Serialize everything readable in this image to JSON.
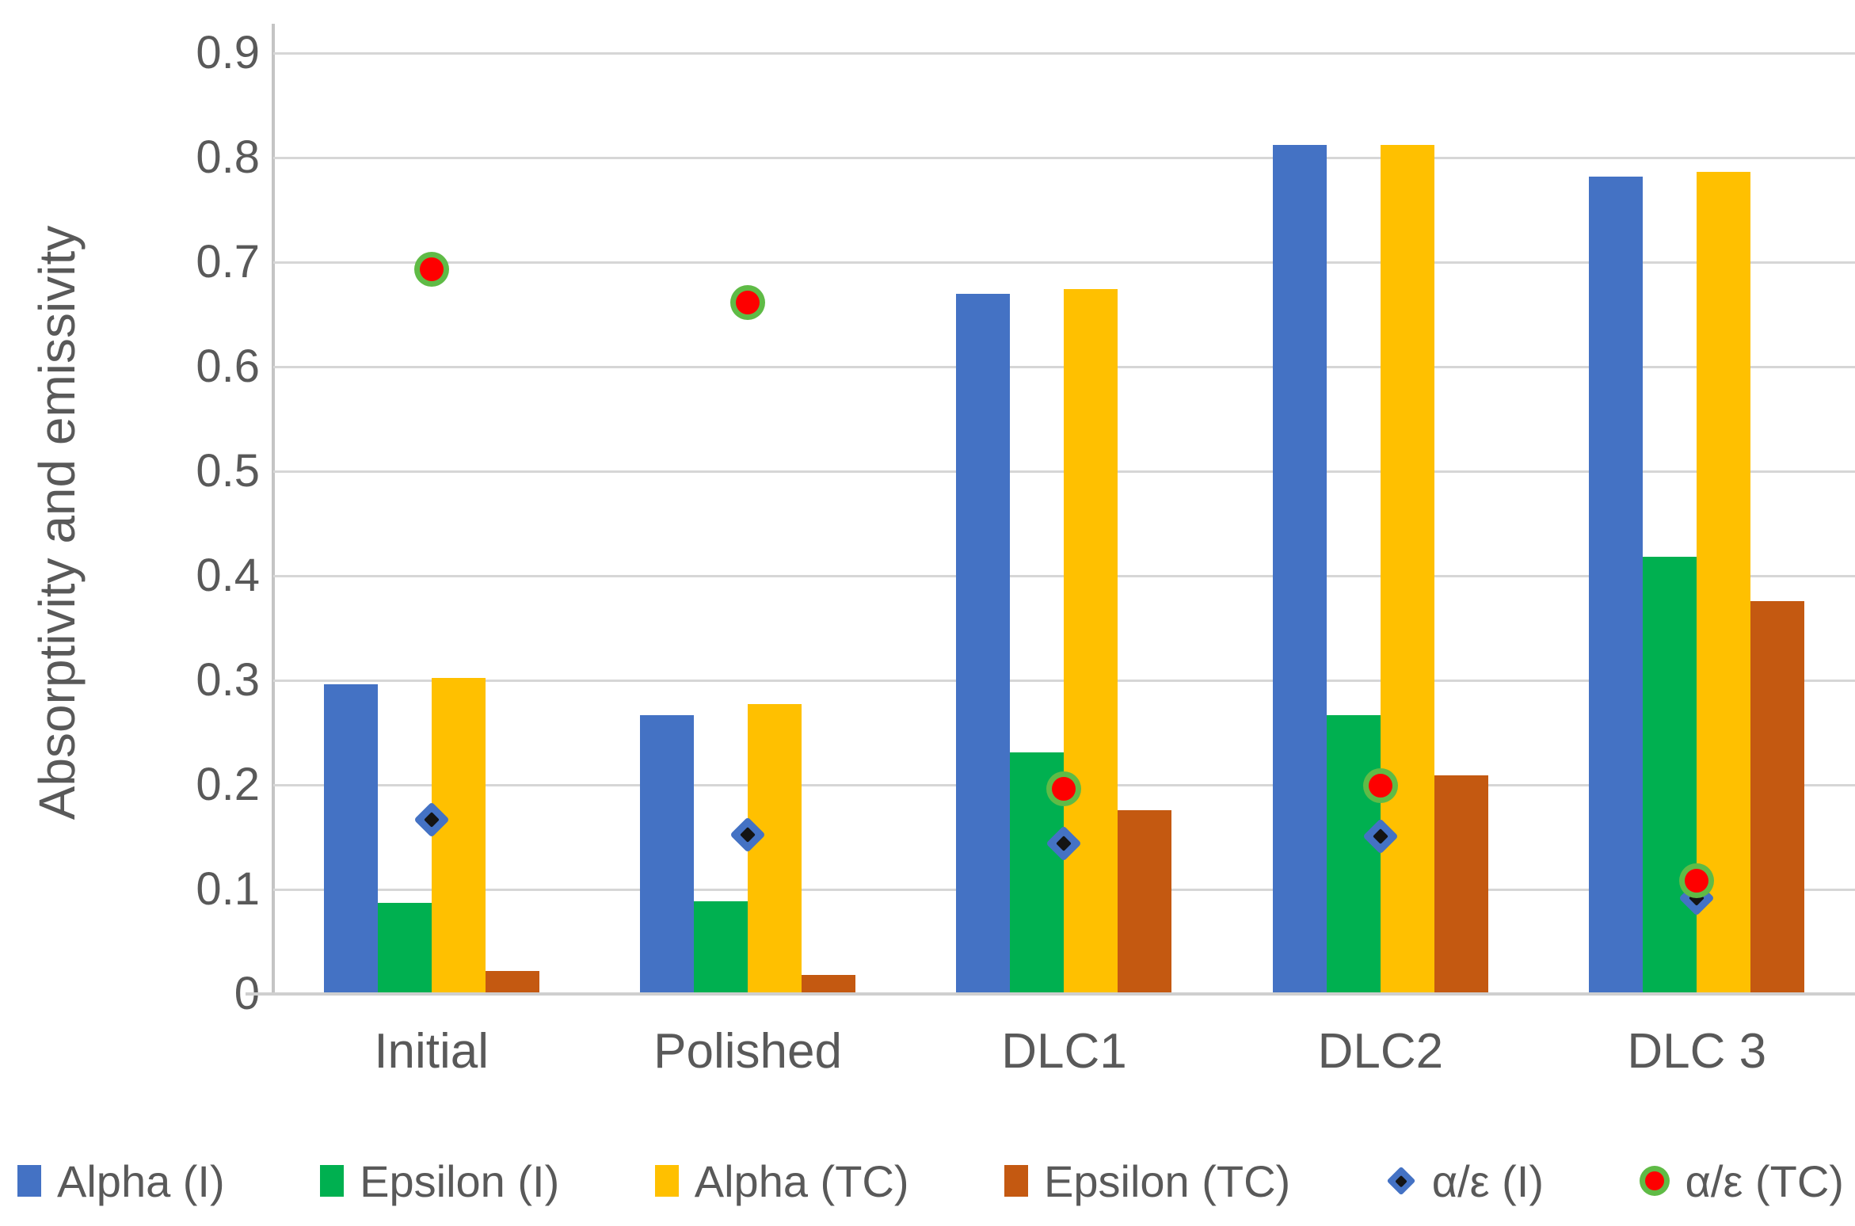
{
  "chart_data": {
    "type": "bar",
    "title": "",
    "ylabel": "Absorptivity and emissivity",
    "xlabel": "",
    "categories": [
      "Initial",
      "Polished",
      "DLC1",
      "DLC2",
      "DLC 3"
    ],
    "ylim": [
      0,
      0.9
    ],
    "yticks": [
      0,
      0.1,
      0.2,
      0.3,
      0.4,
      0.5,
      0.6,
      0.7,
      0.8,
      0.9
    ],
    "grid": true,
    "legend_position": "bottom",
    "series": [
      {
        "name": "Alpha (I)",
        "type": "bar",
        "color": "#4472c4",
        "values": [
          0.296,
          0.267,
          0.67,
          0.812,
          0.782
        ]
      },
      {
        "name": "Epsilon (I)",
        "type": "bar",
        "color": "#00b050",
        "values": [
          0.087,
          0.089,
          0.231,
          0.267,
          0.418
        ]
      },
      {
        "name": "Alpha (TC)",
        "type": "bar",
        "color": "#ffc000",
        "values": [
          0.302,
          0.277,
          0.674,
          0.812,
          0.786
        ]
      },
      {
        "name": "Epsilon (TC)",
        "type": "bar",
        "color": "#c45911",
        "values": [
          0.022,
          0.018,
          0.176,
          0.209,
          0.376
        ]
      },
      {
        "name": "α/ε (I)",
        "type": "scatter",
        "marker": "diamond",
        "color": "#4472c4",
        "center_color": "#141414",
        "values": [
          0.167,
          0.152,
          0.144,
          0.151,
          0.092
        ]
      },
      {
        "name": "α/ε (TC)",
        "type": "scatter",
        "marker": "circle",
        "color": "#fe0000",
        "ring_color": "#5fbb46",
        "values": [
          0.693,
          0.661,
          0.196,
          0.199,
          0.108
        ]
      }
    ]
  },
  "style": {
    "gridline_color": "#d6d6d6",
    "axis_line_color": "#c4c4c4",
    "text_color": "#595959",
    "background": "#ffffff"
  }
}
